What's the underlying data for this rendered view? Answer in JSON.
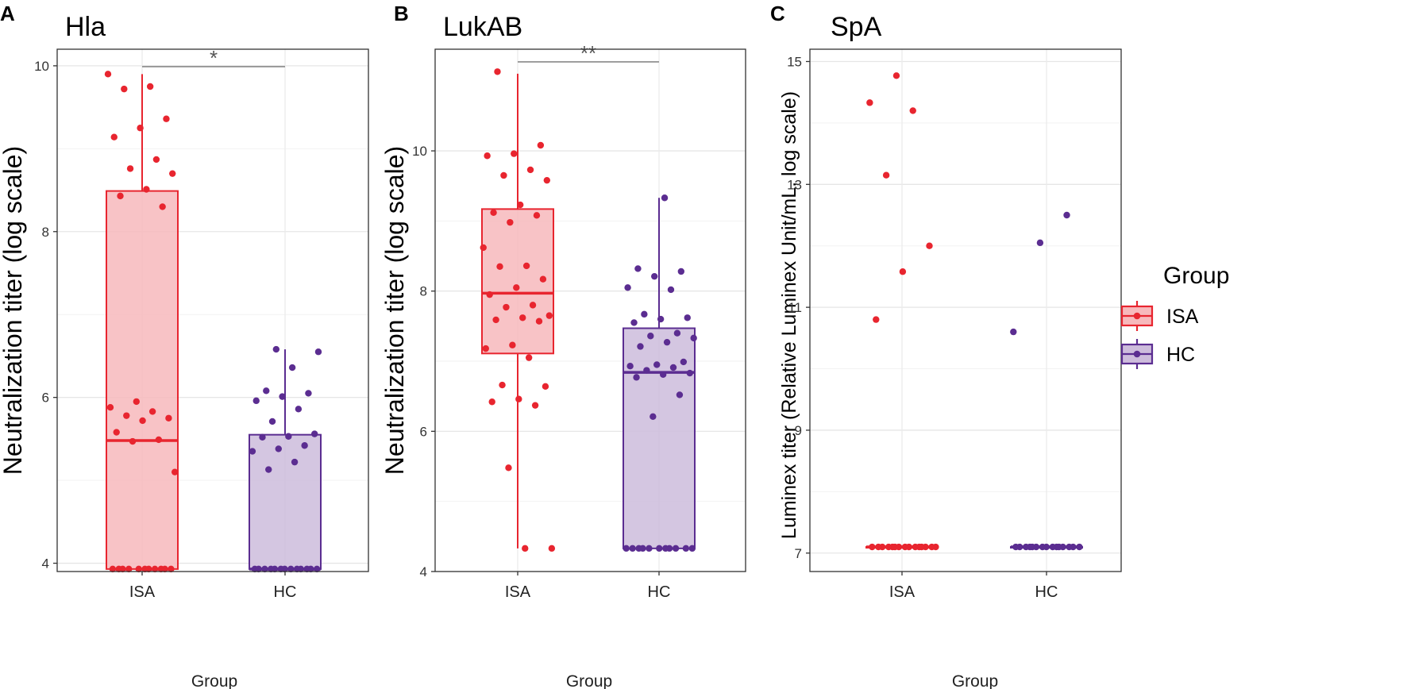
{
  "legend": {
    "title": "Group",
    "items": [
      {
        "label": "ISA",
        "color": "#e8252f",
        "fill": "#f7b9bc"
      },
      {
        "label": "HC",
        "color": "#5b2d91",
        "fill": "#cdbcdc"
      }
    ]
  },
  "chart_data": [
    {
      "type": "box",
      "panel_letter": "A",
      "title": "Hla",
      "ylabel": "Neutralization titer (log scale)",
      "xlabel": "Group",
      "categories": [
        "ISA",
        "HC"
      ],
      "ylim": [
        3.9,
        10.2
      ],
      "yticks": [
        4,
        6,
        8,
        10
      ],
      "boxes": [
        {
          "name": "ISA",
          "min": 3.93,
          "q1": 3.93,
          "median": 5.48,
          "q3": 8.49,
          "max": 9.9
        },
        {
          "name": "HC",
          "min": 3.93,
          "q1": 3.93,
          "median": 3.93,
          "q3": 5.55,
          "max": 6.58
        }
      ],
      "points": [
        [
          9.9,
          9.75,
          9.72,
          9.36,
          9.25,
          9.14,
          8.87,
          8.76,
          8.7,
          8.51,
          8.43,
          8.3,
          5.95,
          5.88,
          5.83,
          5.78,
          5.75,
          5.72,
          5.58,
          5.49,
          5.47,
          5.1,
          3.93,
          3.93,
          3.93,
          3.93,
          3.93,
          3.93,
          3.93,
          3.93,
          3.93,
          3.93,
          3.93
        ],
        [
          6.58,
          6.55,
          6.36,
          6.08,
          6.05,
          6.01,
          5.96,
          5.86,
          5.71,
          5.56,
          5.53,
          5.52,
          5.42,
          5.38,
          5.35,
          5.22,
          5.13,
          3.93,
          3.93,
          3.93,
          3.93,
          3.93,
          3.93,
          3.93,
          3.93,
          3.93,
          3.93,
          3.93,
          3.93,
          3.93
        ]
      ],
      "significance": {
        "label": "*",
        "y": 9.99
      }
    },
    {
      "type": "box",
      "panel_letter": "B",
      "title": "LukAB",
      "ylabel": "Neutralization titer (log scale)",
      "xlabel": "Group",
      "categories": [
        "ISA",
        "HC"
      ],
      "ylim": [
        4.0,
        11.45
      ],
      "yticks": [
        4,
        6,
        8,
        10
      ],
      "boxes": [
        {
          "name": "ISA",
          "min": 4.33,
          "q1": 7.11,
          "median": 7.97,
          "q3": 9.17,
          "max": 11.1
        },
        {
          "name": "HC",
          "min": 4.33,
          "q1": 4.33,
          "median": 6.84,
          "q3": 7.47,
          "max": 9.33
        }
      ],
      "points": [
        [
          11.13,
          10.08,
          9.96,
          9.93,
          9.73,
          9.65,
          9.58,
          9.23,
          9.12,
          9.08,
          8.98,
          8.62,
          8.36,
          8.35,
          8.17,
          8.05,
          7.95,
          7.8,
          7.77,
          7.65,
          7.62,
          7.59,
          7.57,
          7.23,
          7.18,
          7.05,
          6.66,
          6.64,
          6.46,
          6.42,
          6.37,
          5.48,
          4.33,
          4.33
        ],
        [
          9.33,
          8.32,
          8.28,
          8.21,
          8.05,
          8.02,
          7.67,
          7.62,
          7.6,
          7.55,
          7.4,
          7.36,
          7.33,
          7.27,
          7.21,
          6.99,
          6.95,
          6.93,
          6.91,
          6.87,
          6.83,
          6.81,
          6.77,
          6.52,
          6.21,
          4.33,
          4.33,
          4.33,
          4.33,
          4.33,
          4.33,
          4.33,
          4.33,
          4.33,
          4.33,
          4.33
        ]
      ],
      "significance": {
        "label": "**",
        "y": 11.27
      }
    },
    {
      "type": "box",
      "panel_letter": "C",
      "title": "SpA",
      "ylabel": "Luminex titer (Relative Luminex Unit/mL, log scale)",
      "xlabel": "Group",
      "categories": [
        "ISA",
        "HC"
      ],
      "ylim": [
        6.7,
        15.2
      ],
      "yticks": [
        7,
        9,
        11,
        13,
        15
      ],
      "boxes": [
        {
          "name": "ISA",
          "min": 7.1,
          "q1": 7.1,
          "median": 7.1,
          "q3": 7.1,
          "max": 7.1
        },
        {
          "name": "HC",
          "min": 7.1,
          "q1": 7.1,
          "median": 7.1,
          "q3": 7.1,
          "max": 7.1
        }
      ],
      "points": [
        [
          14.77,
          14.33,
          14.2,
          13.15,
          12.0,
          11.58,
          10.8,
          7.1,
          7.1,
          7.1,
          7.1,
          7.1,
          7.1,
          7.1,
          7.1,
          7.1,
          7.1,
          7.1,
          7.1,
          7.1,
          7.1,
          7.1
        ],
        [
          12.5,
          12.05,
          10.6,
          7.1,
          7.1,
          7.1,
          7.1,
          7.1,
          7.1,
          7.1,
          7.1,
          7.1,
          7.1,
          7.1,
          7.1,
          7.1,
          7.1,
          7.1
        ]
      ],
      "significance": null
    }
  ]
}
